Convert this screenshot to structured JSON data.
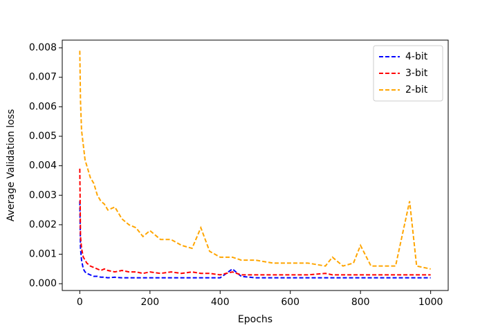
{
  "chart_data": {
    "type": "line",
    "xlabel": "Epochs",
    "ylabel": "Average Validation loss",
    "x": [
      0,
      2,
      5,
      10,
      15,
      20,
      30,
      40,
      50,
      60,
      70,
      80,
      100,
      120,
      140,
      160,
      180,
      200,
      230,
      260,
      290,
      320,
      345,
      370,
      400,
      435,
      460,
      500,
      550,
      600,
      650,
      700,
      720,
      750,
      780,
      800,
      830,
      860,
      900,
      940,
      960,
      1000
    ],
    "series": [
      {
        "name": "4-bit",
        "color": "#0000ff",
        "values": [
          0.0028,
          0.0012,
          0.0008,
          0.0005,
          0.0004,
          0.00035,
          0.0003,
          0.00025,
          0.00025,
          0.00022,
          0.00022,
          0.0002,
          0.00022,
          0.0002,
          0.0002,
          0.0002,
          0.0002,
          0.0002,
          0.0002,
          0.0002,
          0.0002,
          0.0002,
          0.0002,
          0.0002,
          0.0002,
          0.0005,
          0.00025,
          0.0002,
          0.0002,
          0.0002,
          0.0002,
          0.0002,
          0.0002,
          0.0002,
          0.0002,
          0.0002,
          0.0002,
          0.0002,
          0.0002,
          0.0002,
          0.0002,
          0.0002
        ]
      },
      {
        "name": "3-bit",
        "color": "#ff0000",
        "values": [
          0.0039,
          0.0016,
          0.0012,
          0.0009,
          0.0008,
          0.0007,
          0.0006,
          0.00055,
          0.0005,
          0.00045,
          0.0005,
          0.00045,
          0.0004,
          0.00045,
          0.0004,
          0.0004,
          0.00035,
          0.0004,
          0.00035,
          0.0004,
          0.00035,
          0.0004,
          0.00035,
          0.00035,
          0.0003,
          0.0004,
          0.0003,
          0.0003,
          0.0003,
          0.0003,
          0.0003,
          0.00035,
          0.0003,
          0.0003,
          0.0003,
          0.0003,
          0.0003,
          0.0003,
          0.0003,
          0.0003,
          0.0003,
          0.0003
        ]
      },
      {
        "name": "2-bit",
        "color": "#ffa500",
        "values": [
          0.0079,
          0.0062,
          0.0052,
          0.0047,
          0.0042,
          0.004,
          0.0036,
          0.0034,
          0.003,
          0.0028,
          0.0027,
          0.0025,
          0.0026,
          0.0022,
          0.002,
          0.0019,
          0.0016,
          0.0018,
          0.0015,
          0.0015,
          0.0013,
          0.0012,
          0.0019,
          0.0011,
          0.0009,
          0.0009,
          0.0008,
          0.0008,
          0.0007,
          0.0007,
          0.0007,
          0.0006,
          0.0009,
          0.0006,
          0.0007,
          0.0013,
          0.0006,
          0.0006,
          0.0006,
          0.0028,
          0.0006,
          0.0005
        ]
      }
    ],
    "xlim": [
      -50,
      1050
    ],
    "xticks": [
      0,
      200,
      400,
      600,
      800,
      1000
    ],
    "ylim": [
      -0.00023,
      0.00826
    ],
    "yticks": [
      {
        "value": 0,
        "label": "0.000"
      },
      {
        "value": 0.001,
        "label": "0.001"
      },
      {
        "value": 0.002,
        "label": "0.002"
      },
      {
        "value": 0.003,
        "label": "0.003"
      },
      {
        "value": 0.004,
        "label": "0.004"
      },
      {
        "value": 0.005,
        "label": "0.005"
      },
      {
        "value": 0.006,
        "label": "0.006"
      },
      {
        "value": 0.007,
        "label": "0.007"
      },
      {
        "value": 0.008,
        "label": "0.008"
      }
    ],
    "legend": "upper right",
    "grid": false
  }
}
